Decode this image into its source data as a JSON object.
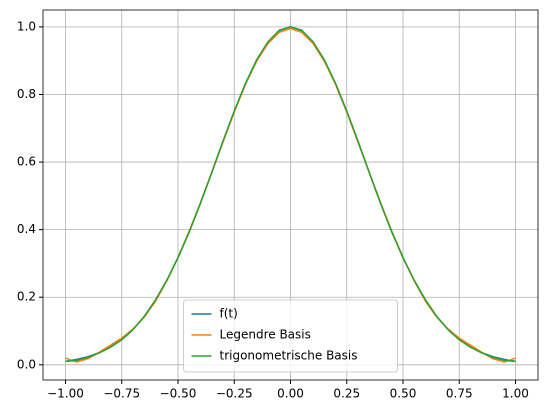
{
  "chart_data": {
    "type": "line",
    "x": [
      -1.0,
      -0.95,
      -0.9,
      -0.85,
      -0.8,
      -0.75,
      -0.7,
      -0.65,
      -0.6,
      -0.55,
      -0.5,
      -0.45,
      -0.4,
      -0.35,
      -0.3,
      -0.25,
      -0.2,
      -0.15,
      -0.1,
      -0.05,
      0.0,
      0.05,
      0.1,
      0.15,
      0.2,
      0.25,
      0.3,
      0.35,
      0.4,
      0.45,
      0.5,
      0.55,
      0.6,
      0.65,
      0.7,
      0.75,
      0.8,
      0.85,
      0.9,
      0.95,
      1.0
    ],
    "series": [
      {
        "name": "f(t)",
        "color": "#1f77b4",
        "values": [
          0.01,
          0.016,
          0.024,
          0.036,
          0.053,
          0.075,
          0.105,
          0.143,
          0.191,
          0.249,
          0.317,
          0.394,
          0.479,
          0.569,
          0.661,
          0.75,
          0.832,
          0.902,
          0.955,
          0.989,
          1.0,
          0.989,
          0.955,
          0.902,
          0.832,
          0.75,
          0.661,
          0.569,
          0.479,
          0.394,
          0.317,
          0.249,
          0.191,
          0.143,
          0.105,
          0.075,
          0.053,
          0.036,
          0.024,
          0.016,
          0.01
        ]
      },
      {
        "name": "Legendre Basis",
        "color": "#ff7f0e",
        "values": [
          0.02,
          0.008,
          0.018,
          0.037,
          0.058,
          0.079,
          0.106,
          0.141,
          0.188,
          0.248,
          0.318,
          0.396,
          0.48,
          0.569,
          0.659,
          0.748,
          0.83,
          0.899,
          0.951,
          0.984,
          0.995,
          0.984,
          0.951,
          0.899,
          0.83,
          0.748,
          0.659,
          0.569,
          0.48,
          0.396,
          0.318,
          0.248,
          0.188,
          0.141,
          0.106,
          0.079,
          0.058,
          0.037,
          0.018,
          0.008,
          0.02
        ]
      },
      {
        "name": "trigonometrische Basis",
        "color": "#2ca02c",
        "values": [
          0.01,
          0.013,
          0.022,
          0.035,
          0.052,
          0.074,
          0.104,
          0.143,
          0.192,
          0.25,
          0.317,
          0.393,
          0.478,
          0.569,
          0.662,
          0.751,
          0.833,
          0.903,
          0.956,
          0.99,
          1.0,
          0.99,
          0.956,
          0.903,
          0.833,
          0.751,
          0.662,
          0.569,
          0.478,
          0.393,
          0.317,
          0.25,
          0.192,
          0.143,
          0.104,
          0.074,
          0.052,
          0.035,
          0.022,
          0.013,
          0.01
        ]
      }
    ],
    "xlim": [
      -1.1,
      1.1
    ],
    "ylim": [
      -0.045,
      1.05
    ],
    "xticks": [
      {
        "value": -1.0,
        "label": "−1.00"
      },
      {
        "value": -0.75,
        "label": "−0.75"
      },
      {
        "value": -0.5,
        "label": "−0.50"
      },
      {
        "value": -0.25,
        "label": "−0.25"
      },
      {
        "value": 0.0,
        "label": "0.00"
      },
      {
        "value": 0.25,
        "label": "0.25"
      },
      {
        "value": 0.5,
        "label": "0.50"
      },
      {
        "value": 0.75,
        "label": "0.75"
      },
      {
        "value": 1.0,
        "label": "1.00"
      }
    ],
    "yticks": [
      {
        "value": 0.0,
        "label": "0.0"
      },
      {
        "value": 0.2,
        "label": "0.2"
      },
      {
        "value": 0.4,
        "label": "0.4"
      },
      {
        "value": 0.6,
        "label": "0.6"
      },
      {
        "value": 0.8,
        "label": "0.8"
      },
      {
        "value": 1.0,
        "label": "1.0"
      }
    ],
    "grid": true,
    "legend": "lower center"
  }
}
